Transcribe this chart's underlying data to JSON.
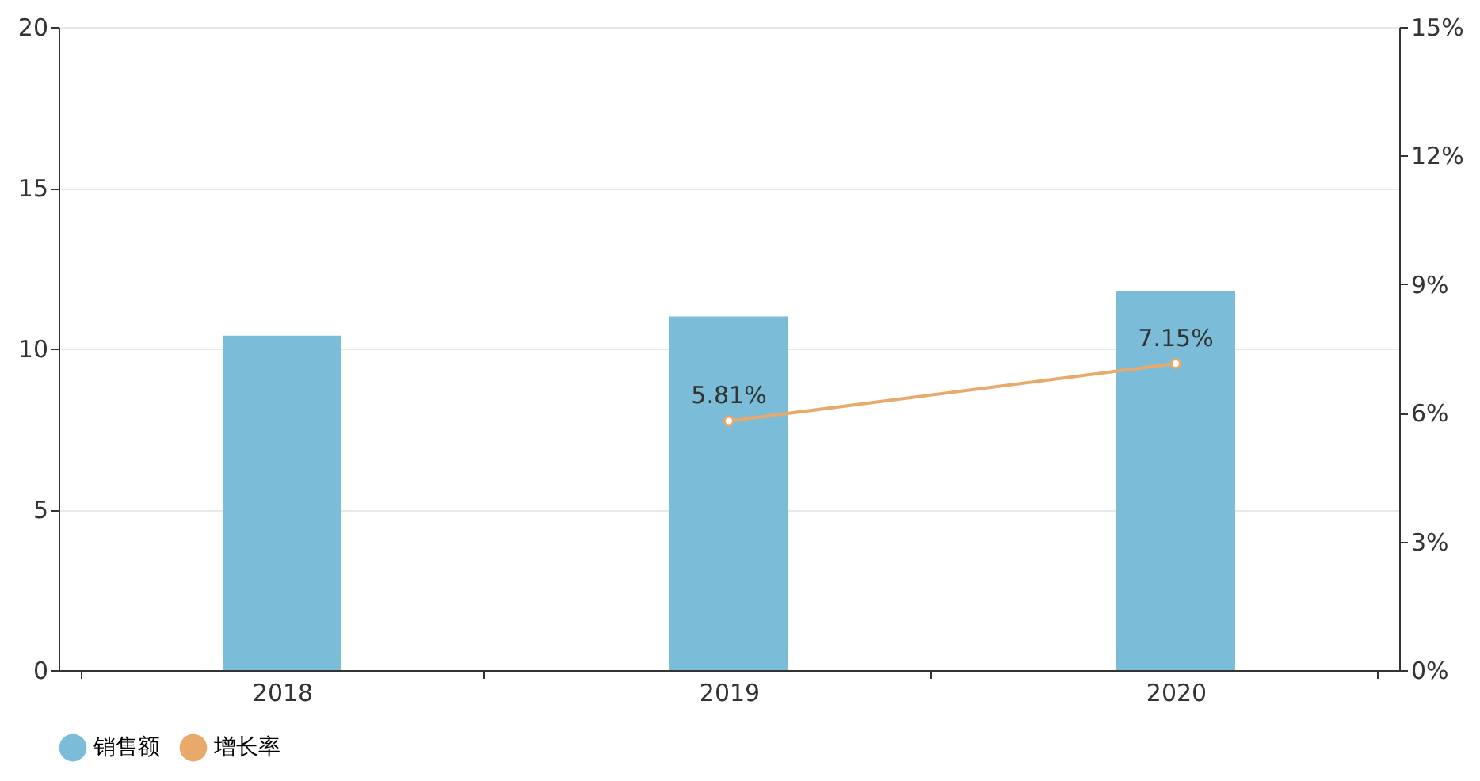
{
  "chart_data": {
    "type": "bar",
    "categories": [
      "2018",
      "2019",
      "2020"
    ],
    "series": [
      {
        "name": "销售额",
        "color": "#7bbcd8",
        "values": [
          10.4,
          11.0,
          11.8
        ]
      },
      {
        "name": "增长率",
        "type": "line",
        "axis": "y2",
        "color": "#e8a96b",
        "values": [
          null,
          5.81,
          7.15
        ],
        "value_labels": [
          null,
          "5.81%",
          "7.15%"
        ],
        "marker": "circle"
      }
    ],
    "ylim": [
      0,
      20
    ],
    "yticks": [
      0,
      5,
      10,
      15,
      20
    ],
    "y2lim": [
      0,
      15
    ],
    "y2ticks": [
      {
        "value": 0,
        "label": "0%"
      },
      {
        "value": 3,
        "label": "3%"
      },
      {
        "value": 6,
        "label": "6%"
      },
      {
        "value": 9,
        "label": "9%"
      },
      {
        "value": 12,
        "label": "12%"
      },
      {
        "value": 15,
        "label": "15%"
      }
    ],
    "grid": "y",
    "legend": "bottom"
  }
}
